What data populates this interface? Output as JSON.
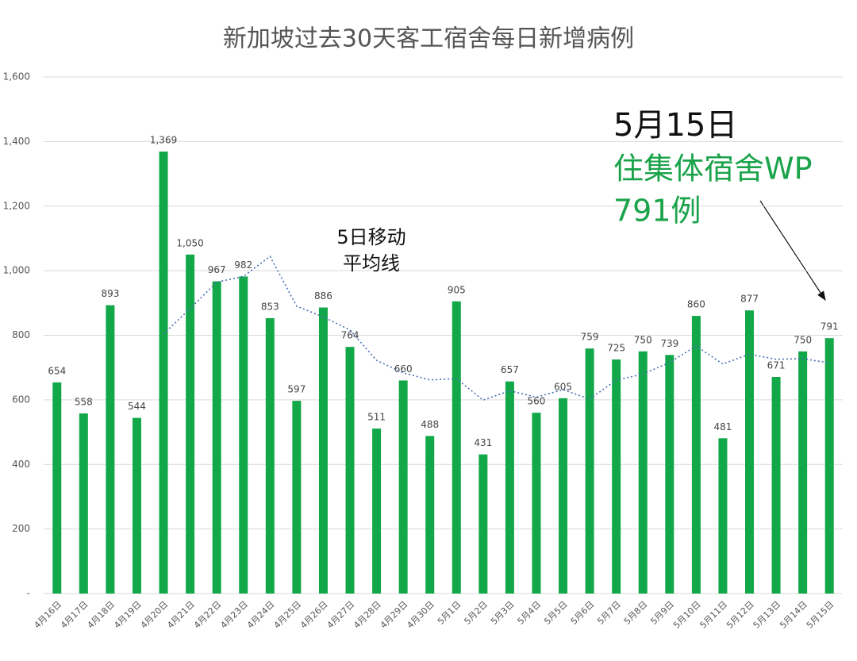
{
  "chart_data": {
    "type": "bar",
    "title": "新加坡过去30天客工宿舍每日新增病例",
    "categories": [
      "4月16日",
      "4月17日",
      "4月18日",
      "4月19日",
      "4月20日",
      "4月21日",
      "4月22日",
      "4月23日",
      "4月24日",
      "4月25日",
      "4月26日",
      "4月27日",
      "4月28日",
      "4月29日",
      "4月30日",
      "5月1日",
      "5月2日",
      "5月3日",
      "5月4日",
      "5月5日",
      "5月6日",
      "5月7日",
      "5月8日",
      "5月9日",
      "5月10日",
      "5月11日",
      "5月12日",
      "5月13日",
      "5月14日",
      "5月15日"
    ],
    "values": [
      654,
      558,
      893,
      544,
      1369,
      1050,
      967,
      982,
      853,
      597,
      886,
      764,
      511,
      660,
      488,
      905,
      431,
      657,
      560,
      605,
      759,
      725,
      750,
      739,
      860,
      481,
      877,
      671,
      750,
      791
    ],
    "value_labels": [
      "654",
      "558",
      "893",
      "544",
      "1,369",
      "1,050",
      "967",
      "982",
      "853",
      "597",
      "886",
      "764",
      "511",
      "660",
      "488",
      "905",
      "431",
      "657",
      "560",
      "605",
      "759",
      "725",
      "750",
      "739",
      "860",
      "481",
      "877",
      "671",
      "750",
      "791"
    ],
    "color": "#12a84a",
    "moving_average": {
      "label_lines": [
        "5日移动",
        "平均线"
      ],
      "color": "#4a6fb5",
      "values": [
        null,
        null,
        null,
        null,
        803.6,
        882.8,
        964.6,
        982.4,
        1044.2,
        889.8,
        857,
        816.4,
        722.2,
        683.6,
        661.8,
        665.6,
        599,
        628.2,
        608.2,
        631.6,
        602.4,
        661.2,
        679.8,
        715.6,
        766.6,
        711,
        741.4,
        725.6,
        727.8,
        714
      ]
    },
    "ylim": [
      0,
      1600
    ],
    "yticks": [
      {
        "value": 0,
        "label": "-"
      },
      200,
      400,
      600,
      800,
      {
        "value": 1000,
        "label": "1,000"
      },
      {
        "value": 1200,
        "label": "1,200"
      },
      {
        "value": 1400,
        "label": "1,400"
      },
      {
        "value": 1600,
        "label": "1,600"
      }
    ],
    "grid": true,
    "annotation": {
      "lines": [
        "5月15日",
        "住集体宿舍WP",
        "791例"
      ],
      "colors": [
        "#111111",
        "#1aa34a",
        "#1aa34a"
      ]
    }
  }
}
